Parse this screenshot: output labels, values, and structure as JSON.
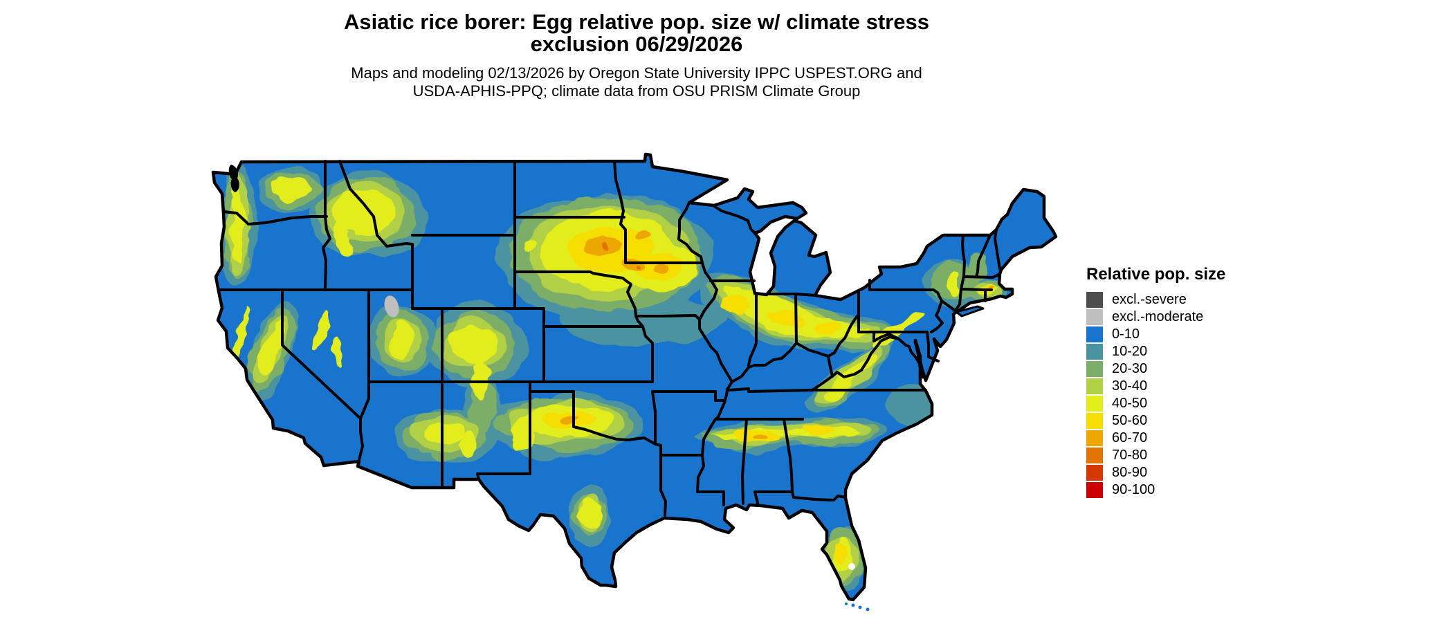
{
  "title": {
    "line1": "Asiatic rice borer: Egg relative pop. size w/ climate stress",
    "line2": "exclusion 06/29/2026"
  },
  "subtitle": {
    "line1": "Maps and modeling 02/13/2026 by Oregon State University IPPC USPEST.ORG and",
    "line2": "USDA-APHIS-PPQ; climate data from OSU PRISM Climate Group"
  },
  "legend": {
    "title": "Relative pop. size",
    "items": [
      {
        "label": "excl.-severe",
        "color": "#4d4d4d"
      },
      {
        "label": "excl.-moderate",
        "color": "#bfbfbf"
      },
      {
        "label": "0-10",
        "color": "#1874cd"
      },
      {
        "label": "10-20",
        "color": "#4b93a1"
      },
      {
        "label": "20-30",
        "color": "#7bae68"
      },
      {
        "label": "30-40",
        "color": "#b2d045"
      },
      {
        "label": "40-50",
        "color": "#e3ed1b"
      },
      {
        "label": "50-60",
        "color": "#f5de00"
      },
      {
        "label": "60-70",
        "color": "#eca800"
      },
      {
        "label": "70-80",
        "color": "#e17300"
      },
      {
        "label": "80-90",
        "color": "#d43900"
      },
      {
        "label": "90-100",
        "color": "#cc0000"
      }
    ]
  },
  "map": {
    "region": "Contiguous United States",
    "base_bin": "0-10",
    "border_color": "#000000",
    "background_color": "#ffffff"
  }
}
